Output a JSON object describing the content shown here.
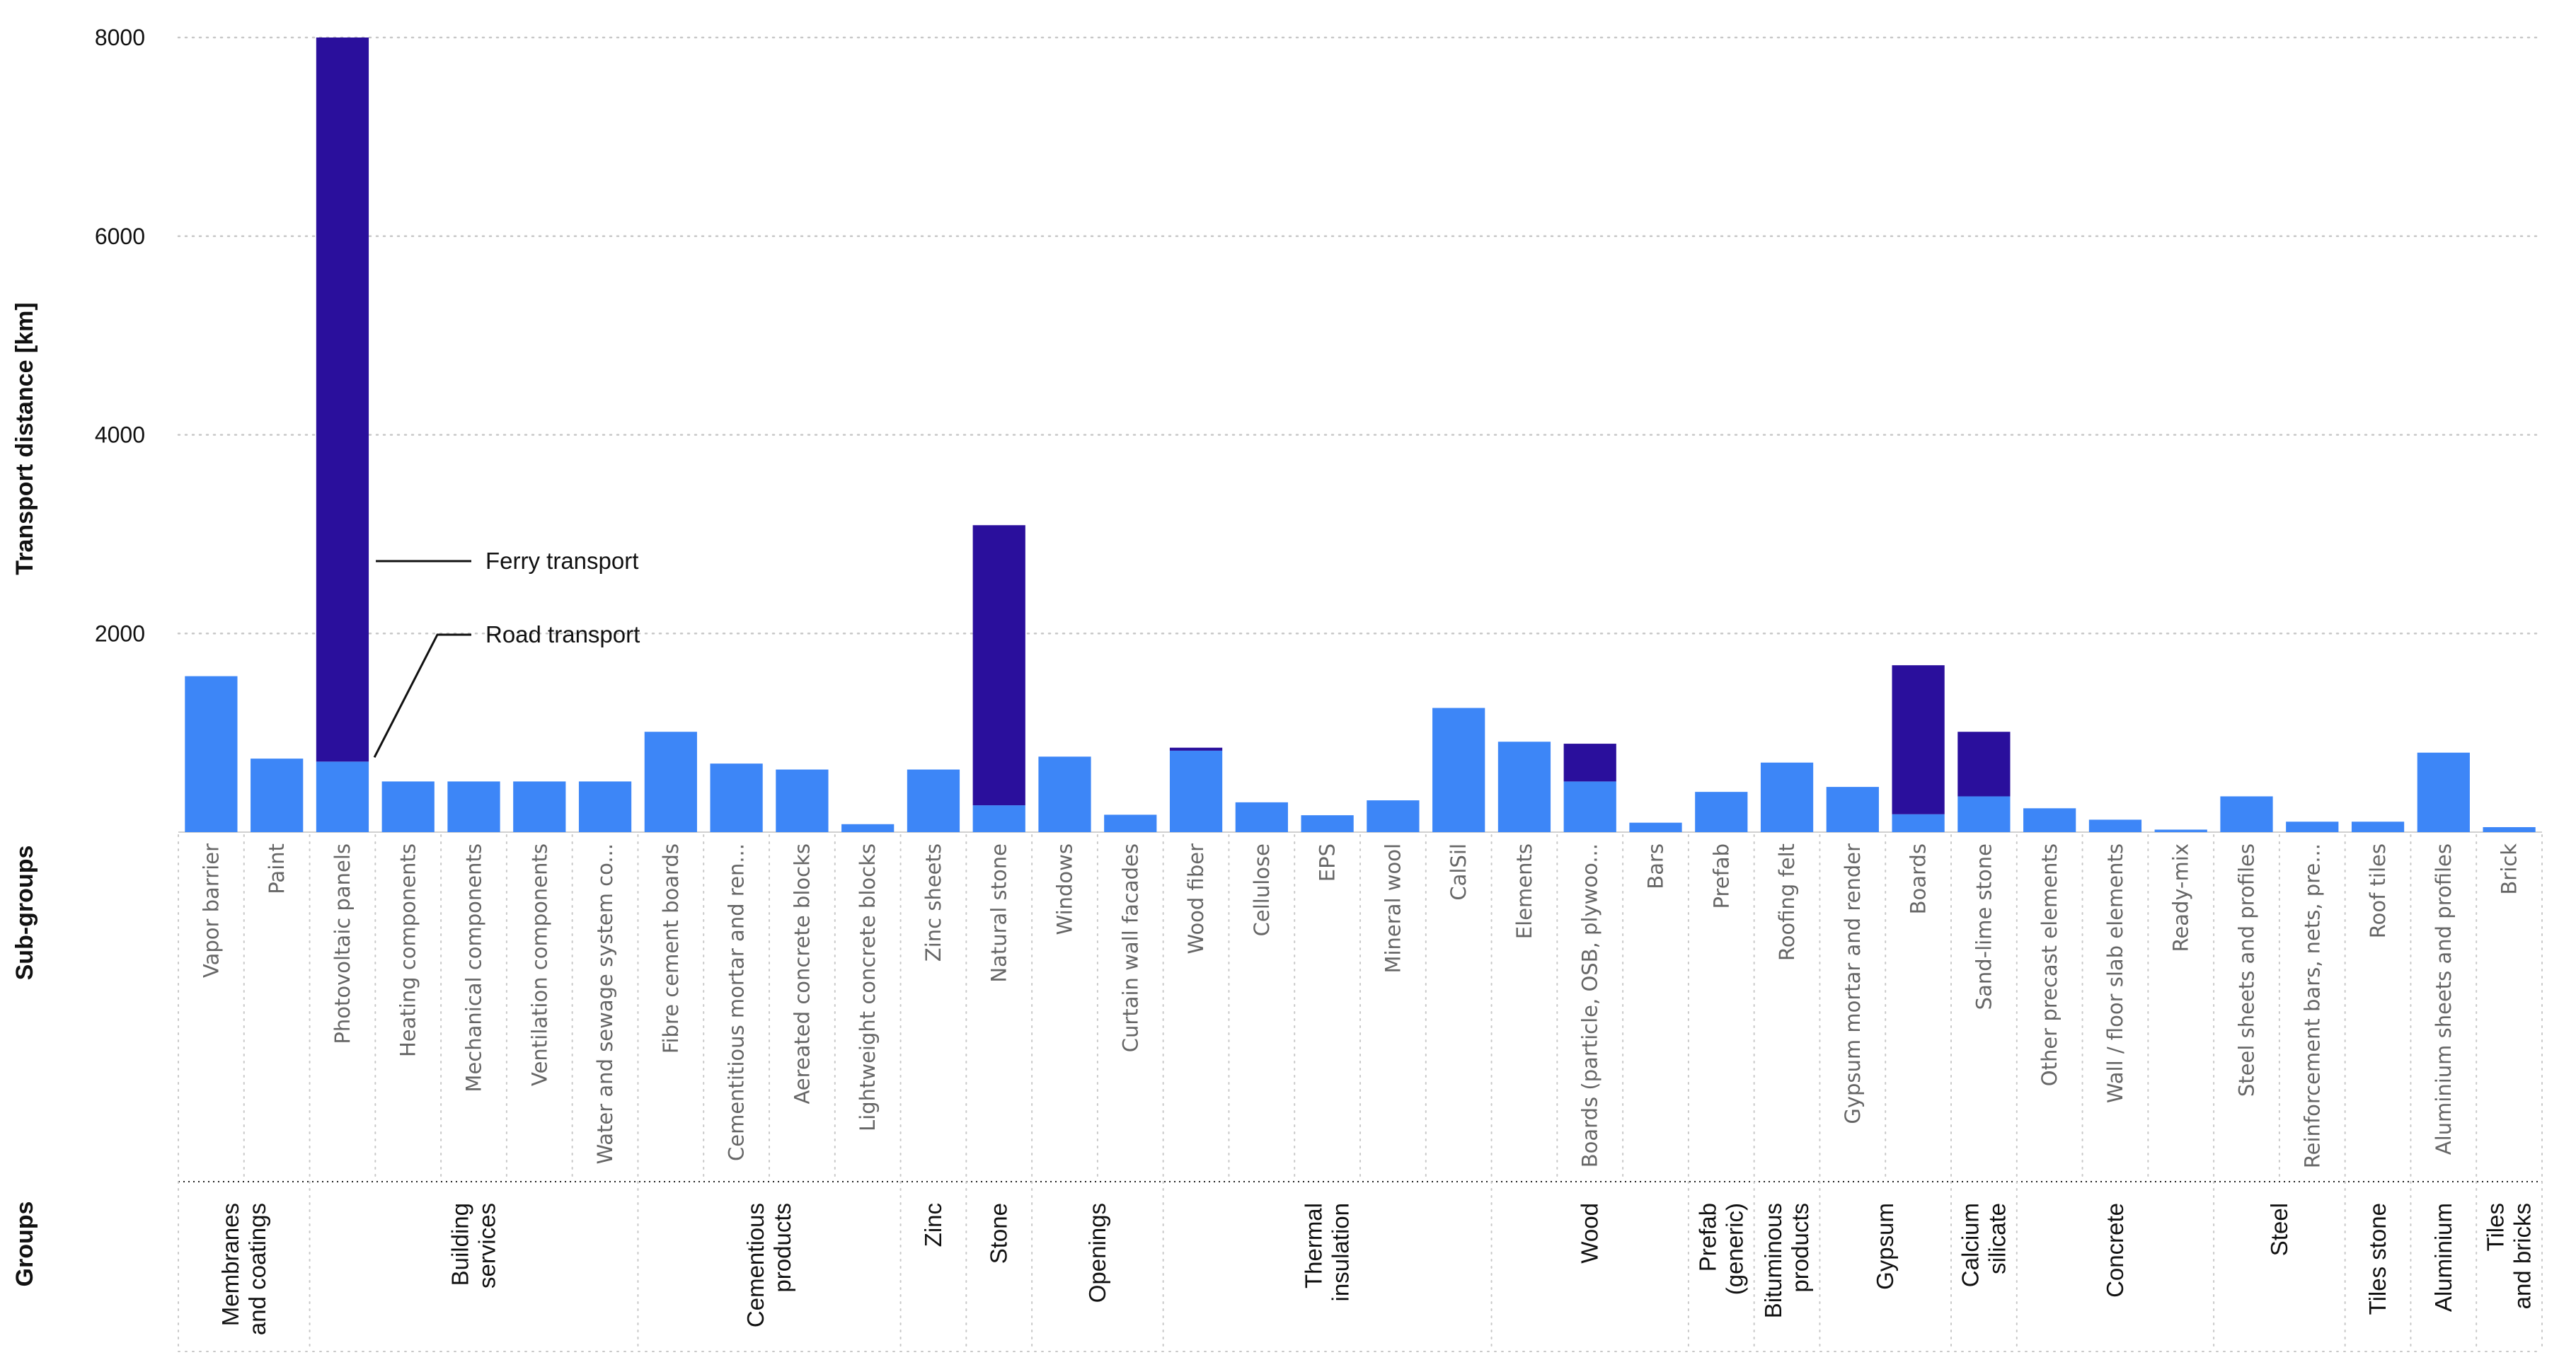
{
  "chart_data": {
    "type": "bar",
    "stacked": true,
    "ylabel": "Transport distance  [km]",
    "ylim": [
      0,
      8000
    ],
    "yticks": [
      2000,
      4000,
      6000,
      8000
    ],
    "row_labels": {
      "subgroups": "Sub-groups",
      "groups": "Groups"
    },
    "colors": {
      "road": "#3d86f7",
      "ferry": "#2a0f9c"
    },
    "series": [
      {
        "name": "Road transport",
        "key": "road"
      },
      {
        "name": "Ferry transport",
        "key": "ferry"
      }
    ],
    "categories": [
      "Vapor barrier",
      "Paint",
      "Photovoltaic panels",
      "Heating components",
      "Mechanical components",
      "Ventilation components",
      "Water and sewage system co...",
      "Fibre cement boards",
      "Cementitious mortar and ren...",
      "Aereated concrete blocks",
      "Lightweight concrete blocks",
      "Zinc sheets",
      "Natural stone",
      "Windows",
      "Curtain wall facades",
      "Wood fiber",
      "Cellulose",
      "EPS",
      "Mineral wool",
      "CalSil",
      "Elements",
      "Boards (particle, OSB, plywoo...",
      "Bars",
      "Prefab",
      "Roofing felt",
      "Gypsum mortar and render",
      "Boards",
      "Sand-lime stone",
      "Other precast elements",
      "Wall / floor slab elements",
      "Ready-mix",
      "Steel sheets and profiles",
      "Reinforcement bars, nets, pre...",
      "Roof tiles",
      "Aluminium sheets and profiles",
      "Brick"
    ],
    "road_values": [
      1570,
      740,
      710,
      510,
      510,
      510,
      510,
      1010,
      690,
      630,
      80,
      630,
      270,
      760,
      175,
      820,
      300,
      170,
      320,
      1250,
      910,
      510,
      95,
      405,
      700,
      455,
      180,
      360,
      240,
      125,
      25,
      360,
      105,
      105,
      800,
      50
    ],
    "ferry_values": [
      0,
      0,
      7290,
      0,
      0,
      0,
      0,
      0,
      0,
      0,
      0,
      0,
      2820,
      0,
      0,
      30,
      0,
      0,
      0,
      0,
      0,
      380,
      0,
      0,
      0,
      0,
      1500,
      650,
      0,
      0,
      0,
      0,
      0,
      0,
      0,
      0
    ],
    "groups": [
      {
        "lines": [
          "Membranes",
          "and coatings"
        ],
        "start": 0,
        "end": 1
      },
      {
        "lines": [
          "Building",
          "services"
        ],
        "start": 2,
        "end": 6
      },
      {
        "lines": [
          "Cementious",
          "products"
        ],
        "start": 7,
        "end": 10
      },
      {
        "lines": [
          "Zinc"
        ],
        "start": 11,
        "end": 11
      },
      {
        "lines": [
          "Stone"
        ],
        "start": 12,
        "end": 12
      },
      {
        "lines": [
          "Openings"
        ],
        "start": 13,
        "end": 14
      },
      {
        "lines": [
          "Thermal",
          "insulation"
        ],
        "start": 15,
        "end": 19
      },
      {
        "lines": [
          "Wood"
        ],
        "start": 20,
        "end": 22
      },
      {
        "lines": [
          "Prefab",
          "(generic)"
        ],
        "start": 23,
        "end": 23
      },
      {
        "lines": [
          "Bituminous",
          "products"
        ],
        "start": 24,
        "end": 24
      },
      {
        "lines": [
          "Gypsum"
        ],
        "start": 25,
        "end": 26
      },
      {
        "lines": [
          "Calcium",
          "silicate"
        ],
        "start": 27,
        "end": 27
      },
      {
        "lines": [
          "Concrete"
        ],
        "start": 28,
        "end": 30
      },
      {
        "lines": [
          "Steel"
        ],
        "start": 31,
        "end": 32
      },
      {
        "lines": [
          "Tiles stone"
        ],
        "start": 33,
        "end": 33
      },
      {
        "lines": [
          "Aluminium"
        ],
        "start": 34,
        "end": 34
      },
      {
        "lines": [
          "Tiles",
          "and bricks"
        ],
        "start": 35,
        "end": 35
      }
    ],
    "annotations": [
      {
        "text": "Ferry transport",
        "target": "Photovoltaic panels"
      },
      {
        "text": "Road transport",
        "target": "Photovoltaic panels"
      }
    ]
  }
}
